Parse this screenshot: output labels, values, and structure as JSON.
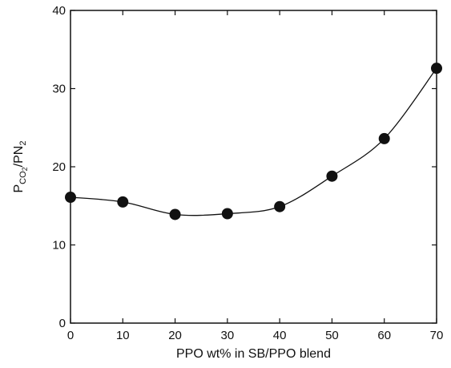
{
  "chart_data": {
    "type": "line",
    "title": "",
    "xlabel": "PPO wt% in SB/PPO blend",
    "ylabel": {
      "p1": "P",
      "sub1": "CO",
      "sub1b": "2",
      "slash": "/P",
      "n": "N",
      "sub2": "2"
    },
    "xlim": [
      0,
      70
    ],
    "ylim": [
      0,
      40
    ],
    "xticks": [
      0,
      10,
      20,
      30,
      40,
      50,
      60,
      70
    ],
    "yticks": [
      0,
      10,
      20,
      30,
      40
    ],
    "grid": false,
    "series": [
      {
        "x": [
          0,
          10,
          20,
          30,
          40,
          50,
          60,
          70
        ],
        "y": [
          16.1,
          15.5,
          13.9,
          14.0,
          14.9,
          18.8,
          23.6,
          32.6
        ]
      }
    ],
    "colors": {
      "line": "#111111",
      "marker": "#111111",
      "axis": "#111111"
    },
    "marker": "filled-circle"
  }
}
